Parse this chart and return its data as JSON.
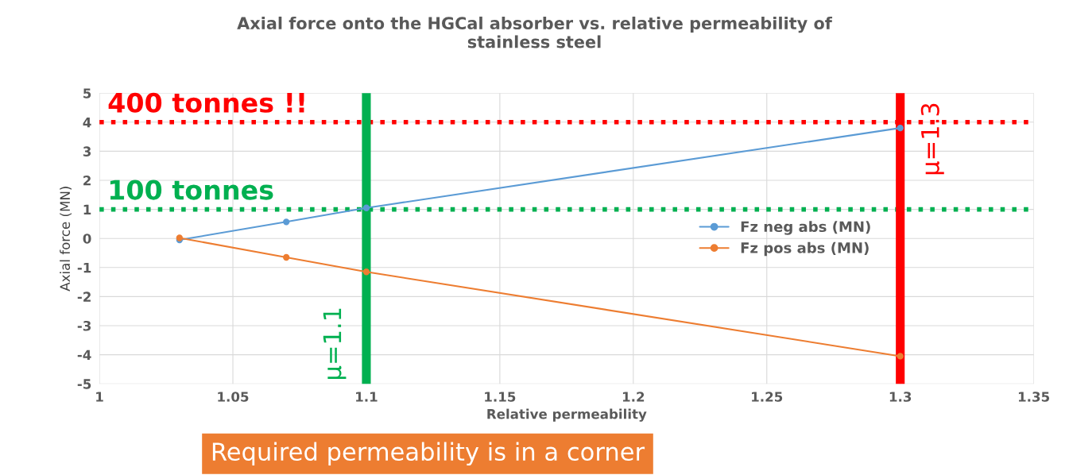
{
  "chart_data": {
    "type": "line",
    "title": "Axial force onto the HGCal absorber vs. relative permeability of\nstainless steel",
    "xlabel": "Relative permeability",
    "ylabel": "Axial force (MN)",
    "series": [
      {
        "name": "Fz neg abs (MN)",
        "color": "#5b9bd5",
        "x": [
          1.03,
          1.07,
          1.1,
          1.3
        ],
        "values": [
          -0.05,
          0.57,
          1.05,
          3.8
        ]
      },
      {
        "name": "Fz pos abs (MN)",
        "color": "#ed7d31",
        "x": [
          1.03,
          1.07,
          1.1,
          1.3
        ],
        "values": [
          0.02,
          -0.65,
          -1.15,
          -4.05
        ]
      }
    ],
    "xlim": [
      1,
      1.35
    ],
    "xticks": [
      1,
      1.05,
      1.1,
      1.15,
      1.2,
      1.25,
      1.3,
      1.35
    ],
    "ylim": [
      -5,
      5
    ],
    "yticks": [
      -5,
      -4,
      -3,
      -2,
      -1,
      0,
      1,
      2,
      3,
      4,
      5
    ],
    "ref_lines": [
      {
        "axis": "y",
        "value": 4,
        "label": "400 tonnes !!",
        "color": "#ff0000",
        "line_style": "dotted"
      },
      {
        "axis": "y",
        "value": 1,
        "label": "100 tonnes",
        "color": "#00b050",
        "line_style": "dotted"
      },
      {
        "axis": "x",
        "value": 1.1,
        "label": "μ=1.1",
        "color": "#00b050",
        "line_style": "solid"
      },
      {
        "axis": "x",
        "value": 1.3,
        "label": "μ=1.3",
        "color": "#ff0000",
        "line_style": "solid"
      }
    ],
    "annotations": [
      "Required permeability is in a corner"
    ],
    "grid": true,
    "legend": "right",
    "marker": "circle",
    "line_style": "solid"
  }
}
